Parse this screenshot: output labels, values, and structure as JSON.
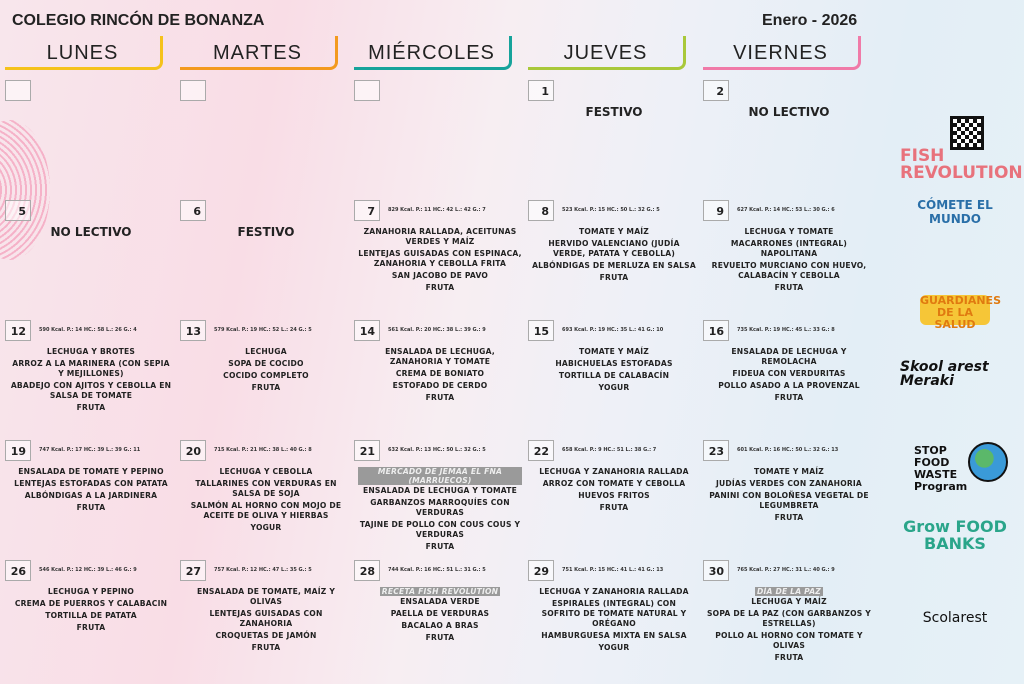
{
  "header": {
    "school": "COLEGIO RINCÓN DE BONANZA",
    "month": "Enero - 2026"
  },
  "days_of_week": [
    {
      "name": "LUNES",
      "color": "#f5c21b"
    },
    {
      "name": "MARTES",
      "color": "#f39a1e"
    },
    {
      "name": "MIÉRCOLES",
      "color": "#16a39b"
    },
    {
      "name": "JUEVES",
      "color": "#a9c83a"
    },
    {
      "name": "VIERNES",
      "color": "#f07aa8"
    }
  ],
  "weeks": [
    [
      {
        "num": ""
      },
      {
        "num": ""
      },
      {
        "num": ""
      },
      {
        "num": "1",
        "label": "FESTIVO"
      },
      {
        "num": "2",
        "label": "NO LECTIVO"
      }
    ],
    [
      {
        "num": "5",
        "label": "NO LECTIVO"
      },
      {
        "num": "6",
        "label": "FESTIVO"
      },
      {
        "num": "7",
        "info": "829 Kcal. P.: 11 HC.: 42 L.: 42 G.: 7",
        "dishes": [
          "ZANAHORIA RALLADA, ACEITUNAS VERDES Y MAÍZ",
          "LENTEJAS GUISADAS CON ESPINACA, ZANAHORIA Y CEBOLLA FRITA",
          "SAN JACOBO DE PAVO",
          "FRUTA"
        ]
      },
      {
        "num": "8",
        "info": "523 Kcal. P.: 15 HC.: 50 L.: 32 G.: 5",
        "dishes": [
          "TOMATE Y MAÍZ",
          "HERVIDO VALENCIANO (JUDÍA VERDE, PATATA Y CEBOLLA)",
          "ALBÓNDIGAS DE MERLUZA EN SALSA",
          "FRUTA"
        ]
      },
      {
        "num": "9",
        "info": "627 Kcal. P.: 14 HC.: 53 L.: 30 G.: 6",
        "dishes": [
          "LECHUGA Y TOMATE",
          "MACARRONES (INTEGRAL) NAPOLITANA",
          "REVUELTO MURCIANO CON HUEVO, CALABACÍN Y CEBOLLA",
          "FRUTA"
        ]
      }
    ],
    [
      {
        "num": "12",
        "info": "590 Kcal. P.: 14 HC.: 58 L.: 26 G.: 4",
        "dishes": [
          "LECHUGA Y BROTES",
          "ARROZ A LA MARINERA (CON SEPIA Y MEJILLONES)",
          "ABADEJO CON AJITOS Y CEBOLLA EN SALSA DE TOMATE",
          "FRUTA"
        ]
      },
      {
        "num": "13",
        "info": "579 Kcal. P.: 19 HC.: 52 L.: 24 G.: 5",
        "dishes": [
          "LECHUGA",
          "SOPA DE COCIDO",
          "COCIDO COMPLETO",
          "FRUTA"
        ]
      },
      {
        "num": "14",
        "info": "561 Kcal. P.: 20 HC.: 38 L.: 39 G.: 9",
        "dishes": [
          "ENSALADA DE LECHUGA, ZANAHORIA Y TOMATE",
          "CREMA DE BONIATO",
          "ESTOFADO DE CERDO",
          "FRUTA"
        ]
      },
      {
        "num": "15",
        "info": "693 Kcal. P.: 19 HC.: 35 L.: 41 G.: 10",
        "dishes": [
          "TOMATE Y MAÍZ",
          "HABICHUELAS ESTOFADAS",
          "TORTILLA DE CALABACÍN",
          "YOGUR"
        ]
      },
      {
        "num": "16",
        "info": "735 Kcal. P.: 19 HC.: 45 L.: 33 G.: 8",
        "dishes": [
          "ENSALADA DE LECHUGA Y REMOLACHA",
          "FIDEUA CON VERDURITAS",
          "POLLO ASADO A LA PROVENZAL",
          "FRUTA"
        ]
      }
    ],
    [
      {
        "num": "19",
        "info": "747 Kcal. P.: 17 HC.: 39 L.: 39 G.: 11",
        "dishes": [
          "ENSALADA DE TOMATE Y PEPINO",
          "LENTEJAS ESTOFADAS CON PATATA",
          "ALBÓNDIGAS A LA JARDINERA",
          "FRUTA"
        ]
      },
      {
        "num": "20",
        "info": "715 Kcal. P.: 21 HC.: 38 L.: 40 G.: 8",
        "dishes": [
          "LECHUGA Y CEBOLLA",
          "TALLARINES CON VERDURAS EN SALSA DE SOJA",
          "SALMÓN AL HORNO CON MOJO DE ACEITE DE OLIVA Y HIERBAS",
          "YOGUR"
        ]
      },
      {
        "num": "21",
        "info": "632 Kcal. P.: 13 HC.: 50 L.: 32 G.: 5",
        "highlight": "MERCADO DE JEMAA EL FNA (MARRUECOS)",
        "dishes": [
          "ENSALADA DE LECHUGA Y TOMATE",
          "GARBANZOS MARROQUÍES CON VERDURAS",
          "TAJINE DE POLLO CON COUS COUS Y VERDURAS",
          "FRUTA"
        ]
      },
      {
        "num": "22",
        "info": "658 Kcal. P.: 9 HC.: 51 L.: 38 G.: 7",
        "dishes": [
          "LECHUGA Y ZANAHORIA RALLADA",
          "ARROZ CON TOMATE Y CEBOLLA",
          "HUEVOS FRITOS",
          "FRUTA"
        ]
      },
      {
        "num": "23",
        "info": "601 Kcal. P.: 16 HC.: 50 L.: 32 G.: 13",
        "dishes": [
          "TOMATE Y MAÍZ",
          "JUDÍAS VERDES CON ZANAHORIA",
          "PANINI CON BOLOÑESA VEGETAL DE LEGUMBRETA",
          "FRUTA"
        ]
      }
    ],
    [
      {
        "num": "26",
        "info": "546 Kcal. P.: 12 HC.: 39 L.: 46 G.: 9",
        "dishes": [
          "LECHUGA Y PEPINO",
          "CREMA DE PUERROS Y CALABACIN",
          "TORTILLA DE PATATA",
          "FRUTA"
        ]
      },
      {
        "num": "27",
        "info": "757 Kcal. P.: 12 HC.: 47 L.: 35 G.: 5",
        "dishes": [
          "ENSALADA DE TOMATE, MAÍZ Y OLIVAS",
          "LENTEJAS GUISADAS CON ZANAHORIA",
          "CROQUETAS DE JAMÓN",
          "FRUTA"
        ]
      },
      {
        "num": "28",
        "info": "744 Kcal. P.: 16 HC.: 51 L.: 31 G.: 5",
        "highlight": "RECETA FISH REVOLUTION",
        "dishes": [
          "ENSALADA VERDE",
          "PAELLA DE VERDURAS",
          "BACALAO A BRAS",
          "FRUTA"
        ]
      },
      {
        "num": "29",
        "info": "751 Kcal. P.: 15 HC.: 41 L.: 41 G.: 13",
        "dishes": [
          "LECHUGA Y ZANAHORIA RALLADA",
          "ESPIRALES (INTEGRAL) CON SOFRITO DE TOMATE NATURAL Y ORÉGANO",
          "HAMBURGUESA MIXTA EN SALSA",
          "YOGUR"
        ]
      },
      {
        "num": "30",
        "info": "765 Kcal. P.: 27 HC.: 31 L.: 40 G.: 9",
        "highlight": "DÍA DE LA PAZ",
        "dishes": [
          "LECHUGA Y MAÍZ",
          "SOPA DE LA PAZ (CON GARBANZOS Y ESTRELLAS)",
          "POLLO AL HORNO CON TOMATE Y OLIVAS",
          "FRUTA"
        ]
      }
    ]
  ],
  "logos": [
    "FISH REVOLUTION",
    "CÓMETE EL MUNDO",
    "GUARDIANES DE LA SALUD",
    "Skool arest Meraki",
    "STOP FOOD WASTE Program",
    "Grow FOOD BANKS",
    "Scolarest"
  ]
}
